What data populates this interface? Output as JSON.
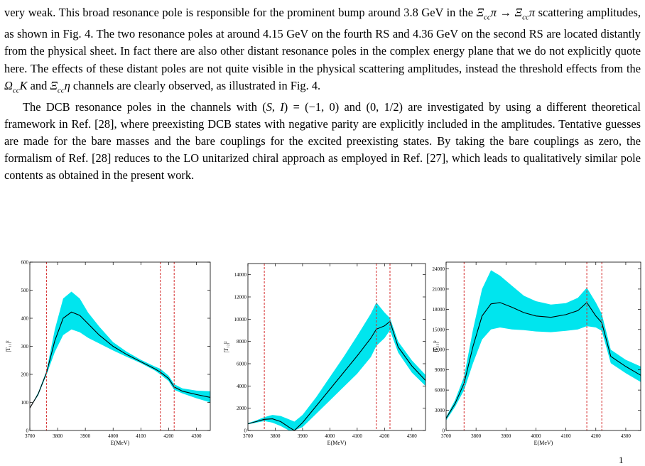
{
  "paragraphs": [
    {
      "indent": false,
      "html": "very weak. This broad resonance pole is responsible for the prominent bump around 3.8 GeV in the <span class=\"math\">Ξ<sub style=\"font-size:11px\">cc</sub>π</span> → <span class=\"math\">Ξ<sub style=\"font-size:11px\">cc</sub>π</span> scattering amplitudes, as shown in Fig. 4. The two resonance poles at around 4.15 GeV on the fourth RS and 4.36 GeV on the second RS are located distantly from the physical sheet. In fact there are also other distant resonance poles in the complex energy plane that we do not explicitly quote here. The effects of these distant poles are not quite visible in the physical scattering amplitudes, instead the threshold effects from the <span class=\"math\">Ω<sub style=\"font-size:11px\">cc</sub>K</span> and <span class=\"math\">Ξ<sub style=\"font-size:11px\">cc</sub>η</span> channels are clearly observed, as illustrated in Fig. 4."
    },
    {
      "indent": true,
      "html": "The DCB resonance poles in the channels with (<span class=\"math\">S</span>, <span class=\"math\">I</span>) = (−1, 0) and (0, 1/2) are investigated by using a different theoretical framework in Ref. [28], where preexisting DCB states with negative parity are explicitly included in the amplitudes. Tentative guesses are made for the bare masses and the bare couplings for the excited preexisting states. By taking the bare couplings as zero, the formalism of Ref. [28] reduces to the LO unitarized chiral approach as employed in Ref. [27], which leads to qualitatively similar pole contents as obtained in the present work."
    }
  ],
  "page_number": "1",
  "chart_data": [
    {
      "type": "line",
      "ylabel": "|T₁₁|²",
      "xlabel": "E(MeV)",
      "xlim": [
        3700,
        4350
      ],
      "ylim": [
        0,
        600
      ],
      "xticks": [
        3700,
        3800,
        3900,
        4000,
        4100,
        4200,
        4300
      ],
      "yticks": [
        0,
        100,
        200,
        300,
        400,
        500,
        600
      ],
      "thresholds": [
        3760,
        4170,
        4220
      ],
      "x": [
        3700,
        3730,
        3760,
        3790,
        3820,
        3850,
        3880,
        3910,
        3950,
        4000,
        4050,
        4100,
        4150,
        4170,
        4200,
        4220,
        4250,
        4300,
        4350
      ],
      "y": [
        80,
        130,
        205,
        320,
        400,
        422,
        410,
        380,
        340,
        300,
        270,
        245,
        220,
        208,
        185,
        155,
        140,
        128,
        118
      ],
      "lower": [
        80,
        125,
        198,
        280,
        340,
        360,
        350,
        330,
        310,
        285,
        262,
        240,
        214,
        200,
        176,
        145,
        132,
        115,
        100
      ],
      "upper": [
        80,
        135,
        212,
        360,
        470,
        495,
        470,
        420,
        370,
        315,
        280,
        252,
        228,
        220,
        195,
        165,
        150,
        142,
        140
      ],
      "band_color": "#00e5ee",
      "line_color": "#000000",
      "threshold_color": "#d42a2a"
    },
    {
      "type": "line",
      "ylabel": "|T₁₂|²",
      "xlabel": "E(MeV)",
      "xlim": [
        3700,
        4350
      ],
      "ylim": [
        0,
        15000
      ],
      "xticks": [
        3700,
        3800,
        3900,
        4000,
        4100,
        4200,
        4300
      ],
      "yticks": [
        0,
        2000,
        4000,
        6000,
        8000,
        10000,
        12000,
        14000
      ],
      "thresholds": [
        3760,
        4170,
        4220
      ],
      "x": [
        3700,
        3730,
        3760,
        3790,
        3820,
        3850,
        3870,
        3900,
        3950,
        4000,
        4050,
        4100,
        4150,
        4170,
        4200,
        4220,
        4250,
        4300,
        4350
      ],
      "y": [
        600,
        800,
        1000,
        1050,
        800,
        300,
        0,
        700,
        2200,
        3700,
        5200,
        6700,
        8300,
        9100,
        9400,
        9800,
        7500,
        5800,
        4500
      ],
      "lower": [
        550,
        700,
        850,
        700,
        400,
        0,
        0,
        300,
        1500,
        2700,
        3900,
        5100,
        6600,
        7600,
        8300,
        9000,
        7000,
        5200,
        4000
      ],
      "upper": [
        650,
        900,
        1200,
        1400,
        1300,
        1000,
        800,
        1400,
        3000,
        4800,
        6600,
        8500,
        10500,
        11500,
        10600,
        10100,
        8000,
        6300,
        5000
      ],
      "band_color": "#00e5ee",
      "line_color": "#000000",
      "threshold_color": "#d42a2a"
    },
    {
      "type": "line",
      "ylabel": "|T₁₃|²",
      "xlabel": "E(MeV)",
      "xlim": [
        3700,
        4350
      ],
      "ylim": [
        0,
        25000
      ],
      "xticks": [
        3700,
        3800,
        3900,
        4000,
        4100,
        4200,
        4300
      ],
      "yticks": [
        0,
        3000,
        6000,
        9000,
        12000,
        15000,
        18000,
        21000,
        24000
      ],
      "thresholds": [
        3760,
        4170,
        4220
      ],
      "x": [
        3700,
        3730,
        3760,
        3790,
        3820,
        3850,
        3880,
        3920,
        3960,
        4000,
        4050,
        4100,
        4140,
        4170,
        4200,
        4220,
        4250,
        4300,
        4350
      ],
      "y": [
        1800,
        4000,
        7000,
        12500,
        17000,
        18800,
        19000,
        18300,
        17500,
        17000,
        16800,
        17200,
        17800,
        19000,
        17000,
        16000,
        11000,
        9500,
        8200
      ],
      "lower": [
        1500,
        3500,
        6000,
        10000,
        13500,
        15000,
        15300,
        15000,
        14900,
        14700,
        14600,
        14800,
        15000,
        15500,
        15300,
        14800,
        10000,
        8500,
        7200
      ],
      "upper": [
        2000,
        4500,
        8000,
        15000,
        21000,
        23800,
        23000,
        21500,
        20000,
        19200,
        18700,
        18900,
        19700,
        21200,
        19000,
        17300,
        12000,
        10500,
        9500
      ],
      "band_color": "#00e5ee",
      "line_color": "#000000",
      "threshold_color": "#d42a2a"
    }
  ]
}
